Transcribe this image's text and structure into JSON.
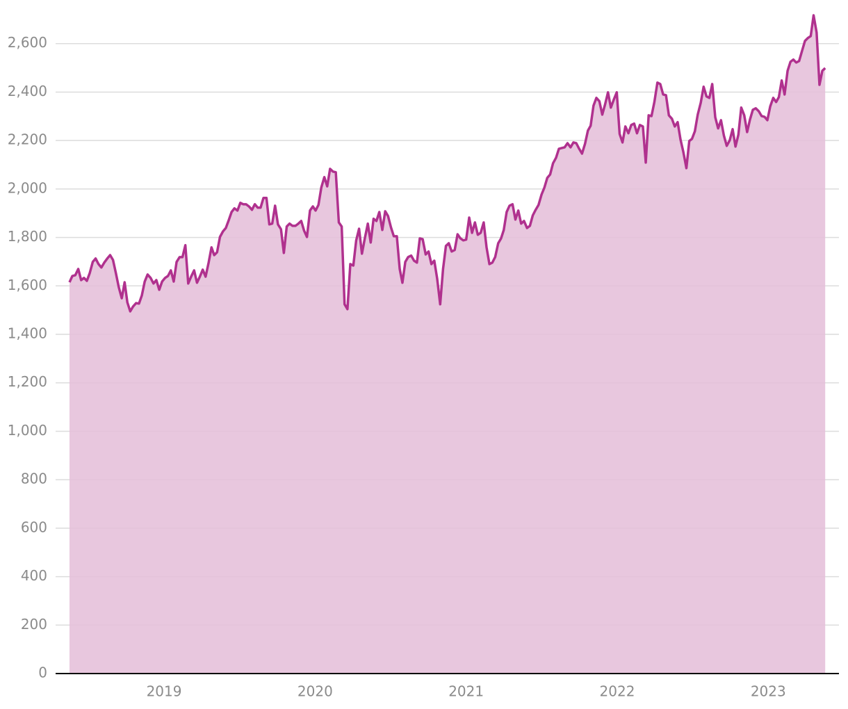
{
  "chart_data": {
    "type": "area",
    "x": [
      2018.374,
      2018.393,
      2018.412,
      2018.432,
      2018.451,
      2018.47,
      2018.489,
      2018.508,
      2018.528,
      2018.547,
      2018.566,
      2018.585,
      2018.604,
      2018.624,
      2018.643,
      2018.662,
      2018.681,
      2018.7,
      2018.72,
      2018.739,
      2018.757,
      2018.776,
      2018.795,
      2018.815,
      2018.834,
      2018.853,
      2018.872,
      2018.891,
      2018.911,
      2018.93,
      2018.949,
      2018.968,
      2018.987,
      2019.007,
      2019.026,
      2019.045,
      2019.064,
      2019.083,
      2019.103,
      2019.122,
      2019.141,
      2019.16,
      2019.179,
      2019.199,
      2019.218,
      2019.237,
      2019.256,
      2019.275,
      2019.295,
      2019.314,
      2019.332,
      2019.351,
      2019.37,
      2019.39,
      2019.409,
      2019.428,
      2019.447,
      2019.466,
      2019.486,
      2019.505,
      2019.524,
      2019.543,
      2019.562,
      2019.582,
      2019.601,
      2019.62,
      2019.639,
      2019.658,
      2019.678,
      2019.697,
      2019.716,
      2019.735,
      2019.754,
      2019.774,
      2019.793,
      2019.812,
      2019.831,
      2019.85,
      2019.87,
      2019.889,
      2019.908,
      2019.927,
      2019.946,
      2019.966,
      2019.985,
      2020.003,
      2020.022,
      2020.041,
      2020.061,
      2020.08,
      2020.099,
      2020.118,
      2020.137,
      2020.157,
      2020.176,
      2020.195,
      2020.214,
      2020.233,
      2020.253,
      2020.272,
      2020.291,
      2020.31,
      2020.329,
      2020.349,
      2020.368,
      2020.387,
      2020.406,
      2020.425,
      2020.445,
      2020.464,
      2020.483,
      2020.502,
      2020.521,
      2020.541,
      2020.56,
      2020.578,
      2020.597,
      2020.616,
      2020.636,
      2020.655,
      2020.674,
      2020.693,
      2020.712,
      2020.732,
      2020.751,
      2020.77,
      2020.789,
      2020.808,
      2020.828,
      2020.847,
      2020.866,
      2020.885,
      2020.904,
      2020.924,
      2020.943,
      2020.962,
      2020.981,
      2021.0,
      2021.02,
      2021.039,
      2021.058,
      2021.077,
      2021.096,
      2021.116,
      2021.135,
      2021.154,
      2021.173,
      2021.192,
      2021.212,
      2021.231,
      2021.249,
      2021.268,
      2021.287,
      2021.307,
      2021.326,
      2021.345,
      2021.364,
      2021.383,
      2021.403,
      2021.422,
      2021.441,
      2021.46,
      2021.479,
      2021.499,
      2021.518,
      2021.537,
      2021.556,
      2021.575,
      2021.595,
      2021.614,
      2021.633,
      2021.652,
      2021.671,
      2021.691,
      2021.71,
      2021.729,
      2021.748,
      2021.767,
      2021.787,
      2021.806,
      2021.824,
      2021.843,
      2021.862,
      2021.882,
      2021.901,
      2021.92,
      2021.939,
      2021.958,
      2021.978,
      2021.997,
      2022.016,
      2022.035,
      2022.054,
      2022.074,
      2022.093,
      2022.112,
      2022.131,
      2022.15,
      2022.17,
      2022.189,
      2022.208,
      2022.227,
      2022.246,
      2022.266,
      2022.285,
      2022.304,
      2022.323,
      2022.342,
      2022.362,
      2022.381,
      2022.4,
      2022.419,
      2022.438,
      2022.458,
      2022.477,
      2022.495,
      2022.514,
      2022.533,
      2022.553,
      2022.572,
      2022.591,
      2022.61,
      2022.629,
      2022.649,
      2022.668,
      2022.687,
      2022.706,
      2022.725,
      2022.745,
      2022.764,
      2022.783,
      2022.802,
      2022.821,
      2022.841,
      2022.86,
      2022.879,
      2022.898,
      2022.917,
      2022.937,
      2022.956,
      2022.975,
      2022.994,
      2023.013,
      2023.033,
      2023.052,
      2023.07,
      2023.089,
      2023.108,
      2023.128,
      2023.147,
      2023.166,
      2023.185,
      2023.204,
      2023.224,
      2023.243,
      2023.262,
      2023.281,
      2023.3,
      2023.32,
      2023.339,
      2023.358,
      2023.377
    ],
    "values": [
      1615,
      1641,
      1644,
      1670,
      1624,
      1633,
      1621,
      1653,
      1699,
      1713,
      1690,
      1676,
      1696,
      1713,
      1727,
      1707,
      1653,
      1595,
      1549,
      1615,
      1532,
      1495,
      1515,
      1529,
      1527,
      1561,
      1618,
      1647,
      1633,
      1610,
      1624,
      1584,
      1618,
      1633,
      1641,
      1664,
      1618,
      1699,
      1719,
      1719,
      1768,
      1610,
      1638,
      1664,
      1613,
      1638,
      1667,
      1638,
      1696,
      1759,
      1727,
      1739,
      1802,
      1825,
      1839,
      1871,
      1905,
      1920,
      1911,
      1943,
      1937,
      1937,
      1928,
      1914,
      1937,
      1923,
      1923,
      1963,
      1963,
      1854,
      1857,
      1931,
      1854,
      1834,
      1736,
      1845,
      1857,
      1848,
      1848,
      1857,
      1868,
      1828,
      1802,
      1911,
      1928,
      1911,
      1934,
      2006,
      2049,
      2011,
      2083,
      2072,
      2069,
      1862,
      1845,
      1524,
      1504,
      1690,
      1684,
      1788,
      1836,
      1733,
      1796,
      1857,
      1779,
      1877,
      1868,
      1905,
      1831,
      1908,
      1888,
      1842,
      1805,
      1805,
      1670,
      1613,
      1699,
      1719,
      1725,
      1704,
      1696,
      1796,
      1793,
      1730,
      1742,
      1690,
      1704,
      1630,
      1524,
      1670,
      1765,
      1776,
      1742,
      1748,
      1813,
      1796,
      1788,
      1791,
      1882,
      1819,
      1862,
      1811,
      1819,
      1862,
      1759,
      1690,
      1696,
      1719,
      1776,
      1796,
      1831,
      1905,
      1931,
      1937,
      1874,
      1911,
      1857,
      1868,
      1839,
      1848,
      1891,
      1914,
      1934,
      1977,
      2006,
      2046,
      2060,
      2106,
      2129,
      2166,
      2169,
      2172,
      2189,
      2172,
      2192,
      2189,
      2166,
      2146,
      2187,
      2241,
      2261,
      2344,
      2376,
      2362,
      2307,
      2350,
      2399,
      2336,
      2370,
      2399,
      2227,
      2192,
      2258,
      2230,
      2264,
      2270,
      2230,
      2264,
      2258,
      2109,
      2304,
      2301,
      2359,
      2439,
      2433,
      2390,
      2387,
      2304,
      2290,
      2258,
      2276,
      2204,
      2152,
      2086,
      2198,
      2207,
      2238,
      2307,
      2356,
      2422,
      2382,
      2376,
      2433,
      2296,
      2250,
      2284,
      2221,
      2178,
      2201,
      2247,
      2175,
      2224,
      2336,
      2304,
      2235,
      2287,
      2327,
      2333,
      2321,
      2301,
      2298,
      2284,
      2341,
      2376,
      2359,
      2379,
      2448,
      2390,
      2488,
      2525,
      2534,
      2522,
      2528,
      2571,
      2611,
      2623,
      2631,
      2717,
      2646,
      2430,
      2488,
      2499
    ],
    "color": "#b0318e",
    "area_color": "#e5bfd9",
    "xlim": [
      2018.282,
      2023.468
    ],
    "xticks": [
      2019,
      2020,
      2021,
      2022,
      2023
    ],
    "ylim": [
      0,
      2780
    ],
    "yticks": [
      0,
      200,
      400,
      600,
      800,
      {
        "value": 1000,
        "label": "1,000"
      },
      {
        "value": 1200,
        "label": "1,200"
      },
      {
        "value": 1400,
        "label": "1,400"
      },
      {
        "value": 1600,
        "label": "1,600"
      },
      {
        "value": 1800,
        "label": "1,800"
      },
      {
        "value": 2000,
        "label": "2,000"
      },
      {
        "value": 2200,
        "label": "2,200"
      },
      {
        "value": 2400,
        "label": "2,400"
      },
      {
        "value": 2600,
        "label": "2,600"
      }
    ],
    "grid": true
  }
}
